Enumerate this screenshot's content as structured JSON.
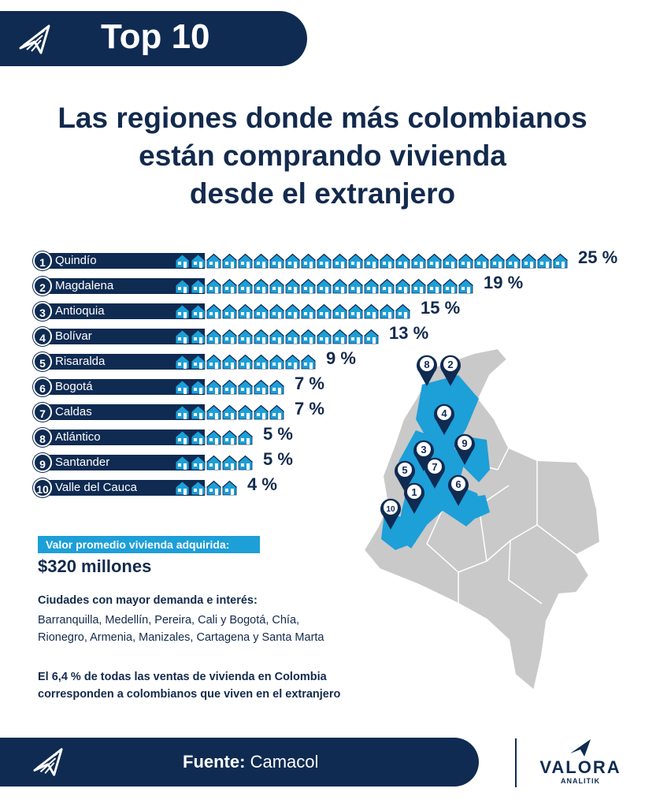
{
  "header": {
    "badge": "Top 10"
  },
  "headline": [
    "Las regiones donde más colombianos",
    "están comprando vivienda",
    "desde el extranjero"
  ],
  "chart_data": {
    "type": "bar",
    "title": "Las regiones donde más colombianos están comprando vivienda desde el extranjero",
    "categories": [
      "Quindío",
      "Magdalena",
      "Antioquia",
      "Bolívar",
      "Risaralda",
      "Bogotá",
      "Caldas",
      "Atlántico",
      "Santander",
      "Valle del Cauca"
    ],
    "ranks": [
      "1",
      "2",
      "3",
      "4",
      "5",
      "6",
      "7",
      "8",
      "9",
      "10"
    ],
    "values": [
      25,
      19,
      15,
      13,
      9,
      7,
      7,
      5,
      5,
      4
    ],
    "value_labels": [
      "25 %",
      "19 %",
      "15 %",
      "13 %",
      "9 %",
      "7 %",
      "7 %",
      "5 %",
      "5 %",
      "4 %"
    ],
    "unit": "%",
    "marker": "house-icon",
    "colors": {
      "bar_label_bg": "#0f2b52",
      "house": "#1d9fd8",
      "highlight_region": "#1d9fd8",
      "map_base": "#c9c9c9"
    }
  },
  "summary": {
    "valor_label": "Valor promedio vivienda adquirida:",
    "valor_amount": "$320 millones",
    "cities_title": "Ciudades con mayor demanda e interés:",
    "cities_line1": "Barranquilla, Medellín, Pereira, Cali y Bogotá, Chía,",
    "cities_line2": "Rionegro, Armenia, Manizales, Cartagena y Santa Marta",
    "footnote_line1": "El 6,4 % de todas las ventas de vivienda en Colombia",
    "footnote_line2": "corresponden a colombianos que viven en el extranjero"
  },
  "footer": {
    "source_label": "Fuente:",
    "source_value": "Camacol"
  },
  "brand": {
    "name": "VALORA",
    "sub": "ANALITIK"
  },
  "map": {
    "pin_labels": [
      "8",
      "2",
      "4",
      "3",
      "9",
      "5",
      "7",
      "6",
      "1",
      "10"
    ]
  }
}
